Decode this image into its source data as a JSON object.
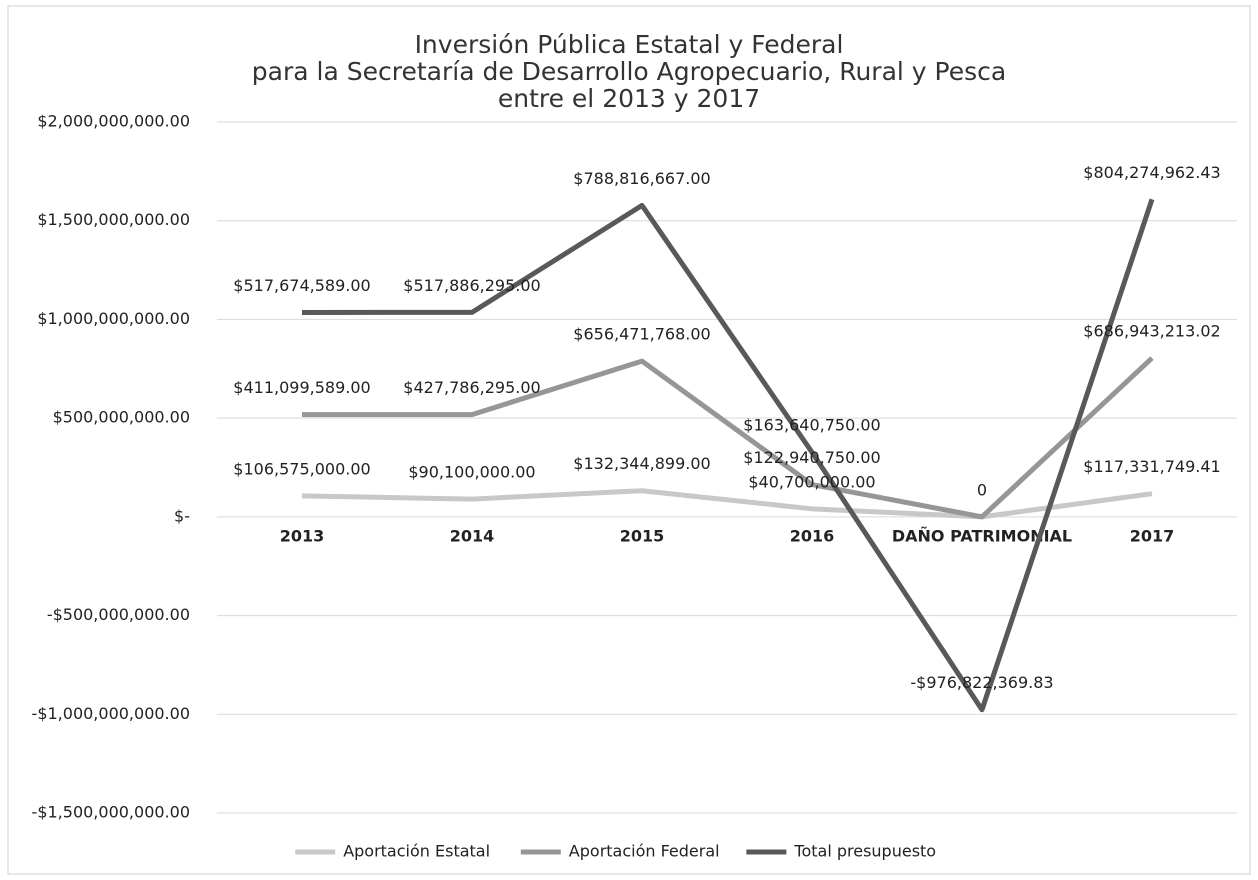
{
  "chart_data": {
    "type": "line",
    "stacked": true,
    "title": [
      "Inversión Pública Estatal y Federal",
      "para la Secretaría de Desarrollo Agropecuario, Rural y Pesca",
      "entre el 2013 y 2017"
    ],
    "categories": [
      "2013",
      "2014",
      "2015",
      "2016",
      "DAÑO PATRIMONIAL",
      "2017"
    ],
    "series": [
      {
        "name": "Aportación Estatal",
        "color": "#c8c8c8",
        "values": [
          106575000,
          90100000,
          132344899,
          40700000,
          0,
          117331749.41
        ],
        "value_labels": [
          "$106,575,000.00",
          "$90,100,000.00",
          "$132,344,899.00",
          "$40,700,000.00",
          null,
          "$117,331,749.41"
        ]
      },
      {
        "name": "Aportación Federal",
        "color": "#969696",
        "values": [
          411099589,
          427786295,
          656471768,
          122940750,
          0,
          686943213.02
        ],
        "value_labels": [
          "$411,099,589.00",
          "$427,786,295.00",
          "$656,471,768.00",
          "$122,940,750.00",
          "0",
          "$686,943,213.02"
        ]
      },
      {
        "name": "Total presupuesto",
        "color": "#595959",
        "values": [
          517674589,
          517886295,
          788816667,
          163640750,
          -976822369.83,
          804274962.43
        ],
        "value_labels": [
          "$517,674,589.00",
          "$517,886,295.00",
          "$788,816,667.00",
          "$163,640,750.00",
          "-$976,822,369.83",
          "$804,274,962.43"
        ]
      }
    ],
    "ylim": [
      -1500000000,
      2000000000
    ],
    "yticks": [
      {
        "value": -1500000000,
        "label": "-$1,500,000,000.00"
      },
      {
        "value": -1000000000,
        "label": "-$1,000,000,000.00"
      },
      {
        "value": -500000000,
        "label": "-$500,000,000.00"
      },
      {
        "value": 0,
        "label": "$-"
      },
      {
        "value": 500000000,
        "label": "$500,000,000.00"
      },
      {
        "value": 1000000000,
        "label": "$1,000,000,000.00"
      },
      {
        "value": 1500000000,
        "label": "$1,500,000,000.00"
      },
      {
        "value": 2000000000,
        "label": "$2,000,000,000.00"
      }
    ],
    "grid": true,
    "legend": "bottom"
  }
}
